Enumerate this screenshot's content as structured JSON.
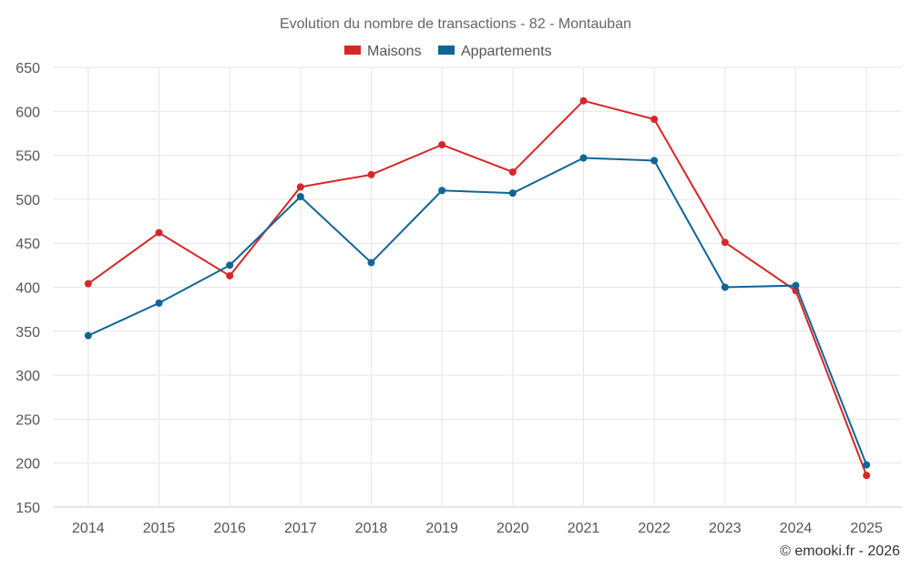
{
  "chart_data": {
    "type": "line",
    "title": "Evolution du nombre de transactions - 82 - Montauban",
    "categories": [
      "2014",
      "2015",
      "2016",
      "2017",
      "2018",
      "2019",
      "2020",
      "2021",
      "2022",
      "2023",
      "2024",
      "2025"
    ],
    "series": [
      {
        "name": "Maisons",
        "color": "#d62728",
        "values": [
          404,
          462,
          413,
          514,
          528,
          562,
          531,
          612,
          591,
          451,
          396,
          186
        ]
      },
      {
        "name": "Appartements",
        "color": "#0f6596",
        "values": [
          345,
          382,
          425,
          503,
          428,
          510,
          507,
          547,
          544,
          400,
          402,
          198
        ]
      }
    ],
    "ylim": [
      150,
      650
    ],
    "yticks": [
      "150",
      "200",
      "250",
      "300",
      "350",
      "400",
      "450",
      "500",
      "550",
      "600",
      "650"
    ],
    "xlabel": "",
    "ylabel": "",
    "grid": true,
    "legend_position": "top-center",
    "credit": "© emooki.fr - 2026"
  }
}
